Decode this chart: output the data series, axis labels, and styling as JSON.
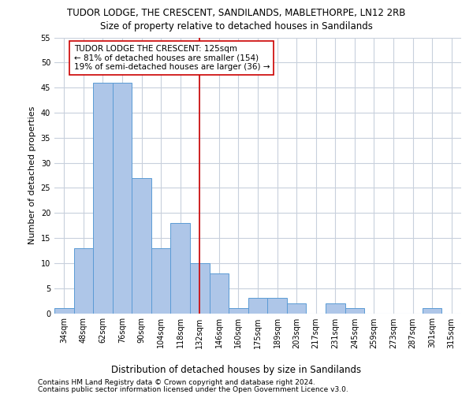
{
  "title": "TUDOR LODGE, THE CRESCENT, SANDILANDS, MABLETHORPE, LN12 2RB",
  "subtitle": "Size of property relative to detached houses in Sandilands",
  "xlabel": "Distribution of detached houses by size in Sandilands",
  "ylabel": "Number of detached properties",
  "categories": [
    "34sqm",
    "48sqm",
    "62sqm",
    "76sqm",
    "90sqm",
    "104sqm",
    "118sqm",
    "132sqm",
    "146sqm",
    "160sqm",
    "175sqm",
    "189sqm",
    "203sqm",
    "217sqm",
    "231sqm",
    "245sqm",
    "259sqm",
    "273sqm",
    "287sqm",
    "301sqm",
    "315sqm"
  ],
  "values": [
    1,
    13,
    46,
    46,
    27,
    13,
    18,
    10,
    8,
    1,
    3,
    3,
    2,
    0,
    2,
    1,
    0,
    0,
    0,
    1,
    0
  ],
  "bar_color": "#aec6e8",
  "bar_edge_color": "#5b9bd5",
  "vline_x": 7,
  "vline_color": "#cc0000",
  "annotation_line1": "TUDOR LODGE THE CRESCENT: 125sqm",
  "annotation_line2": "← 81% of detached houses are smaller (154)",
  "annotation_line3": "19% of semi-detached houses are larger (36) →",
  "annotation_box_color": "#ffffff",
  "annotation_box_edge_color": "#cc0000",
  "ylim": [
    0,
    55
  ],
  "yticks": [
    0,
    5,
    10,
    15,
    20,
    25,
    30,
    35,
    40,
    45,
    50,
    55
  ],
  "footer1": "Contains HM Land Registry data © Crown copyright and database right 2024.",
  "footer2": "Contains public sector information licensed under the Open Government Licence v3.0.",
  "title_fontsize": 8.5,
  "subtitle_fontsize": 8.5,
  "ylabel_fontsize": 8,
  "xlabel_fontsize": 8.5,
  "tick_fontsize": 7,
  "annotation_fontsize": 7.5,
  "footer_fontsize": 6.5,
  "background_color": "#ffffff",
  "grid_color": "#c8d0dc"
}
